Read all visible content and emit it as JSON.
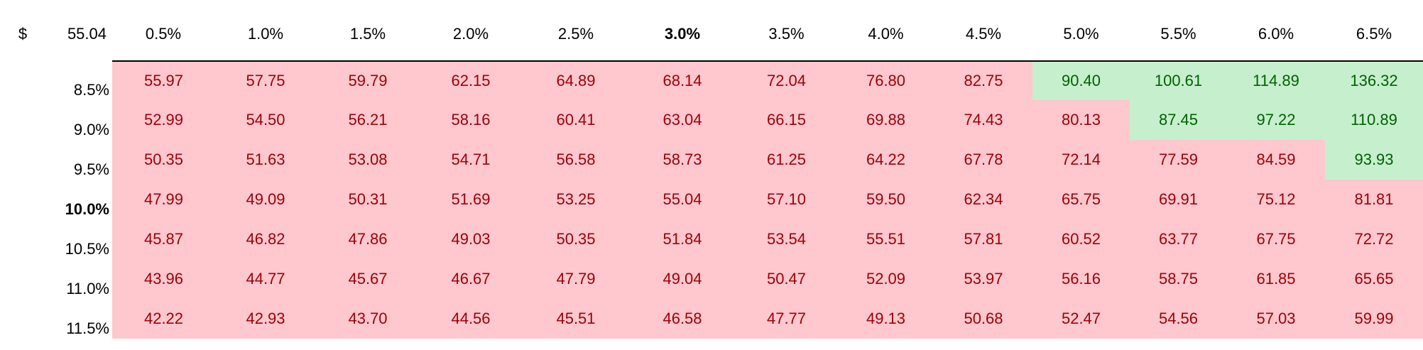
{
  "corner": {
    "currency_symbol": "$",
    "base_value": "55.04"
  },
  "column_headers": [
    "0.5%",
    "1.0%",
    "1.5%",
    "2.0%",
    "2.5%",
    "3.0%",
    "3.5%",
    "4.0%",
    "4.5%",
    "5.0%",
    "5.5%",
    "6.0%",
    "6.5%"
  ],
  "bold_column_index": 5,
  "row_headers": [
    "8.5%",
    "9.0%",
    "9.5%",
    "10.0%",
    "10.5%",
    "11.0%",
    "11.5%"
  ],
  "bold_row_index": 3,
  "colors": {
    "below_fill": "#FFC7CE",
    "below_text": "#9C0006",
    "above_fill": "#C6EFCE",
    "above_text": "#006100"
  },
  "rows": [
    [
      "55.97",
      "57.75",
      "59.79",
      "62.15",
      "64.89",
      "68.14",
      "72.04",
      "76.80",
      "82.75",
      "90.40",
      "100.61",
      "114.89",
      "136.32"
    ],
    [
      "52.99",
      "54.50",
      "56.21",
      "58.16",
      "60.41",
      "63.04",
      "66.15",
      "69.88",
      "74.43",
      "80.13",
      "87.45",
      "97.22",
      "110.89"
    ],
    [
      "50.35",
      "51.63",
      "53.08",
      "54.71",
      "56.58",
      "58.73",
      "61.25",
      "64.22",
      "67.78",
      "72.14",
      "77.59",
      "84.59",
      "93.93"
    ],
    [
      "47.99",
      "49.09",
      "50.31",
      "51.69",
      "53.25",
      "55.04",
      "57.10",
      "59.50",
      "62.34",
      "65.75",
      "69.91",
      "75.12",
      "81.81"
    ],
    [
      "45.87",
      "46.82",
      "47.86",
      "49.03",
      "50.35",
      "51.84",
      "53.54",
      "55.51",
      "57.81",
      "60.52",
      "63.77",
      "67.75",
      "72.72"
    ],
    [
      "43.96",
      "44.77",
      "45.67",
      "46.67",
      "47.79",
      "49.04",
      "50.47",
      "52.09",
      "53.97",
      "56.16",
      "58.75",
      "61.85",
      "65.65"
    ],
    [
      "42.22",
      "42.93",
      "43.70",
      "44.56",
      "45.51",
      "46.58",
      "47.77",
      "49.13",
      "50.68",
      "52.47",
      "54.56",
      "57.03",
      "59.99"
    ]
  ],
  "highlighted": [
    [
      false,
      false,
      false,
      false,
      false,
      false,
      false,
      false,
      false,
      true,
      true,
      true,
      true
    ],
    [
      false,
      false,
      false,
      false,
      false,
      false,
      false,
      false,
      false,
      false,
      true,
      true,
      true
    ],
    [
      false,
      false,
      false,
      false,
      false,
      false,
      false,
      false,
      false,
      false,
      false,
      false,
      true
    ],
    [
      false,
      false,
      false,
      false,
      false,
      false,
      false,
      false,
      false,
      false,
      false,
      false,
      false
    ],
    [
      false,
      false,
      false,
      false,
      false,
      false,
      false,
      false,
      false,
      false,
      false,
      false,
      false
    ],
    [
      false,
      false,
      false,
      false,
      false,
      false,
      false,
      false,
      false,
      false,
      false,
      false,
      false
    ],
    [
      false,
      false,
      false,
      false,
      false,
      false,
      false,
      false,
      false,
      false,
      false,
      false,
      false
    ]
  ]
}
